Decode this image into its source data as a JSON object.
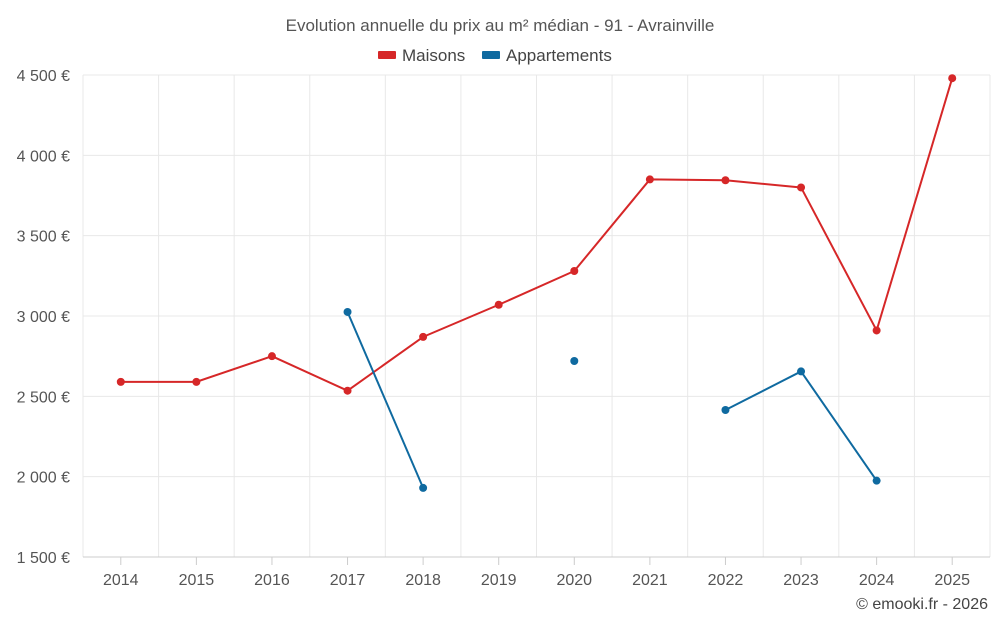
{
  "chart_data": {
    "type": "line",
    "title": "Evolution annuelle du prix au m² médian - 91 - Avrainville",
    "categories": [
      "2014",
      "2015",
      "2016",
      "2017",
      "2018",
      "2019",
      "2020",
      "2021",
      "2022",
      "2023",
      "2024",
      "2025"
    ],
    "series": [
      {
        "name": "Maisons",
        "color": "#d62728",
        "values": [
          2590,
          2590,
          2750,
          2535,
          2870,
          3070,
          3280,
          3850,
          3845,
          3800,
          2910,
          4480
        ]
      },
      {
        "name": "Appartements",
        "color": "#0f6aa0",
        "values": [
          null,
          null,
          null,
          3025,
          1930,
          null,
          2720,
          null,
          2415,
          2655,
          1975,
          null
        ]
      }
    ],
    "ylim": [
      1500,
      4500
    ],
    "yticks": [
      1500,
      2000,
      2500,
      3000,
      3500,
      4000,
      4500
    ],
    "ytick_labels": [
      "1 500 €",
      "2 000 €",
      "2 500 €",
      "3 000 €",
      "3 500 €",
      "4 000 €",
      "4 500 €"
    ],
    "legend_position": "top-center",
    "grid": true
  },
  "credit": "© emooki.fr - 2026"
}
